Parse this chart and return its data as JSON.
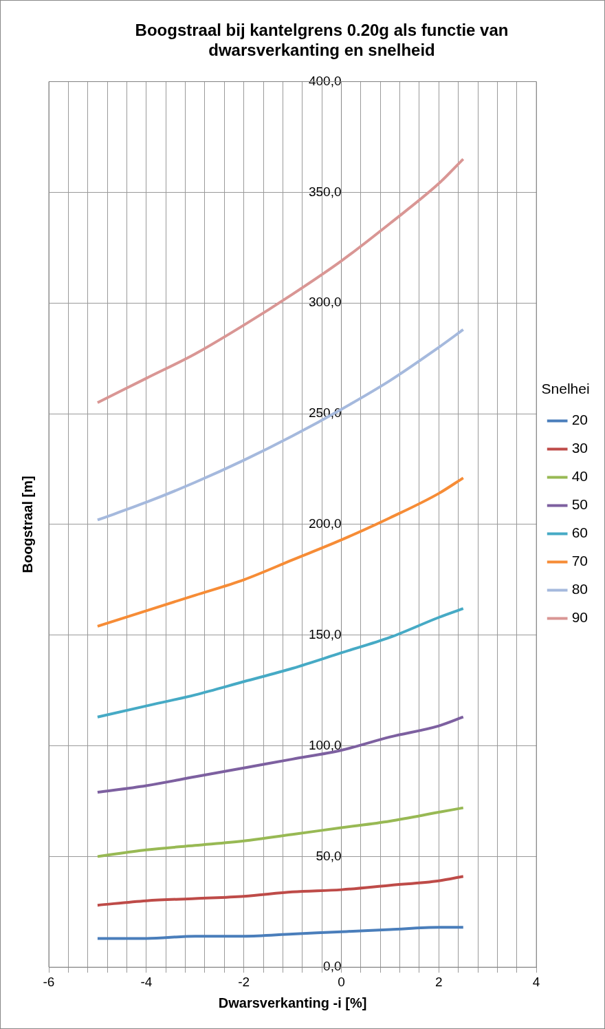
{
  "chart_data": {
    "type": "line",
    "title": "Boogstraal bij kantelgrens 0.20g als functie van dwarsverkanting en snelheid",
    "xlabel": "Dwarsverkanting -i [%]",
    "ylabel": "Boogstraal [m]",
    "legend_title": "Snelhei",
    "x": [
      -5,
      -4,
      -3,
      -2,
      -1,
      0,
      1,
      2,
      2.5
    ],
    "series": [
      {
        "name": "20",
        "color": "#4a7ebb",
        "values": [
          13,
          13,
          14,
          14,
          15,
          16,
          17,
          18,
          18
        ]
      },
      {
        "name": "30",
        "color": "#be4b48",
        "values": [
          28,
          30,
          31,
          32,
          34,
          35,
          37,
          39,
          41
        ]
      },
      {
        "name": "40",
        "color": "#98b954",
        "values": [
          50,
          53,
          55,
          57,
          60,
          63,
          66,
          70,
          72
        ]
      },
      {
        "name": "50",
        "color": "#7d60a0",
        "values": [
          79,
          82,
          86,
          90,
          94,
          98,
          104,
          109,
          113
        ]
      },
      {
        "name": "60",
        "color": "#46aac5",
        "values": [
          113,
          118,
          123,
          129,
          135,
          142,
          149,
          158,
          162
        ]
      },
      {
        "name": "70",
        "color": "#f68c36",
        "values": [
          154,
          161,
          168,
          175,
          184,
          193,
          203,
          214,
          221
        ]
      },
      {
        "name": "80",
        "color": "#a5b9dd",
        "values": [
          202,
          210,
          219,
          229,
          240,
          252,
          265,
          280,
          288
        ]
      },
      {
        "name": "90",
        "color": "#d99694",
        "values": [
          255,
          266,
          277,
          290,
          304,
          319,
          336,
          354,
          365
        ]
      }
    ],
    "xlim": [
      -6,
      4
    ],
    "xticks": [
      -6,
      {
        "value": -5.6,
        "label": null
      },
      {
        "value": -5.2,
        "label": null
      },
      {
        "value": -4.8,
        "label": null
      },
      {
        "value": -4.4,
        "label": null
      },
      -4,
      {
        "value": -3.6,
        "label": null
      },
      {
        "value": -3.2,
        "label": null
      },
      {
        "value": -2.8,
        "label": null
      },
      {
        "value": -2.4,
        "label": null
      },
      -2,
      {
        "value": -1.6,
        "label": null
      },
      {
        "value": -1.2,
        "label": null
      },
      {
        "value": -0.8,
        "label": null
      },
      {
        "value": -0.4,
        "label": null
      },
      0,
      {
        "value": 0.4,
        "label": null
      },
      {
        "value": 0.8,
        "label": null
      },
      {
        "value": 1.2,
        "label": null
      },
      {
        "value": 1.6,
        "label": null
      },
      2,
      {
        "value": 2.4,
        "label": null
      },
      {
        "value": 2.8,
        "label": null
      },
      {
        "value": 3.2,
        "label": null
      },
      {
        "value": 3.6,
        "label": null
      },
      4
    ],
    "ylim": [
      0,
      400
    ],
    "yticks": [
      {
        "value": 0,
        "label": "0,0"
      },
      {
        "value": 50,
        "label": "50,0"
      },
      {
        "value": 100,
        "label": "100,0"
      },
      {
        "value": 150,
        "label": "150,0"
      },
      {
        "value": 200,
        "label": "200,0"
      },
      {
        "value": 250,
        "label": "250,0"
      },
      {
        "value": 300,
        "label": "300,0"
      },
      {
        "value": 350,
        "label": "350,0"
      },
      {
        "value": 400,
        "label": "400,0"
      }
    ],
    "grid": true,
    "legend": "right",
    "marker": "none",
    "line_style": "solid"
  }
}
